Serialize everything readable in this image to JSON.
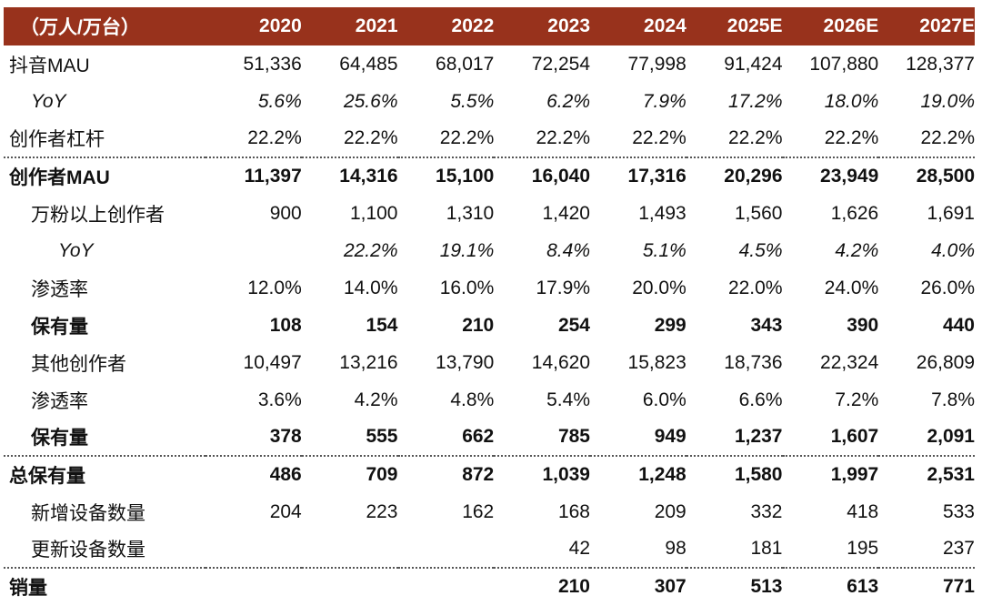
{
  "header": {
    "unit_label": "（万人/万台）",
    "years": [
      "2020",
      "2021",
      "2022",
      "2023",
      "2024",
      "2025E",
      "2026E",
      "2027E"
    ]
  },
  "rows": [
    {
      "label": "抖音MAU",
      "values": [
        "51,336",
        "64,485",
        "68,017",
        "72,254",
        "77,998",
        "91,424",
        "107,880",
        "128,377"
      ]
    },
    {
      "label": "YoY",
      "values": [
        "5.6%",
        "25.6%",
        "5.5%",
        "6.2%",
        "7.9%",
        "17.2%",
        "18.0%",
        "19.0%"
      ]
    },
    {
      "label": "创作者杠杆",
      "values": [
        "22.2%",
        "22.2%",
        "22.2%",
        "22.2%",
        "22.2%",
        "22.2%",
        "22.2%",
        "22.2%"
      ]
    },
    {
      "label": "创作者MAU",
      "values": [
        "11,397",
        "14,316",
        "15,100",
        "16,040",
        "17,316",
        "20,296",
        "23,949",
        "28,500"
      ]
    },
    {
      "label": "万粉以上创作者",
      "values": [
        "900",
        "1,100",
        "1,310",
        "1,420",
        "1,493",
        "1,560",
        "1,626",
        "1,691"
      ]
    },
    {
      "label": "YoY",
      "values": [
        "",
        "22.2%",
        "19.1%",
        "8.4%",
        "5.1%",
        "4.5%",
        "4.2%",
        "4.0%"
      ]
    },
    {
      "label": "渗透率",
      "values": [
        "12.0%",
        "14.0%",
        "16.0%",
        "17.9%",
        "20.0%",
        "22.0%",
        "24.0%",
        "26.0%"
      ]
    },
    {
      "label": "保有量",
      "values": [
        "108",
        "154",
        "210",
        "254",
        "299",
        "343",
        "390",
        "440"
      ]
    },
    {
      "label": "其他创作者",
      "values": [
        "10,497",
        "13,216",
        "13,790",
        "14,620",
        "15,823",
        "18,736",
        "22,324",
        "26,809"
      ]
    },
    {
      "label": "渗透率",
      "values": [
        "3.6%",
        "4.2%",
        "4.8%",
        "5.4%",
        "6.0%",
        "6.6%",
        "7.2%",
        "7.8%"
      ]
    },
    {
      "label": "保有量",
      "values": [
        "378",
        "555",
        "662",
        "785",
        "949",
        "1,237",
        "1,607",
        "2,091"
      ]
    },
    {
      "label": "总保有量",
      "values": [
        "486",
        "709",
        "872",
        "1,039",
        "1,248",
        "1,580",
        "1,997",
        "2,531"
      ]
    },
    {
      "label": "新增设备数量",
      "values": [
        "204",
        "223",
        "162",
        "168",
        "209",
        "332",
        "418",
        "533"
      ]
    },
    {
      "label": "更新设备数量",
      "values": [
        "",
        "",
        "",
        "42",
        "98",
        "181",
        "195",
        "237"
      ]
    },
    {
      "label": "销量",
      "values": [
        "",
        "",
        "",
        "210",
        "307",
        "513",
        "613",
        "771"
      ]
    }
  ],
  "colors": {
    "header_bg": "#98321c",
    "header_text": "#ffffff"
  }
}
